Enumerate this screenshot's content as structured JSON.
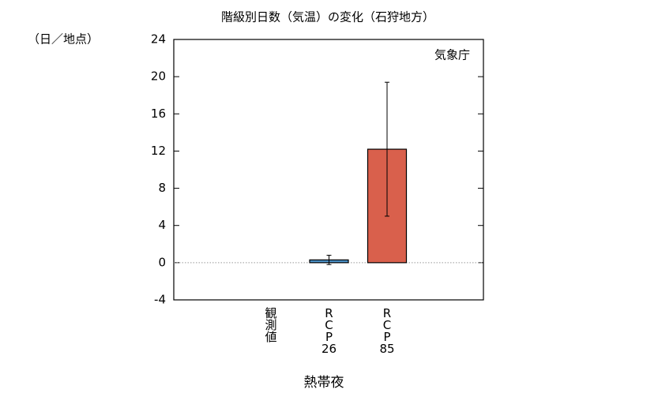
{
  "chart_data": {
    "type": "bar",
    "title": "階級別日数（気温）の変化（石狩地方）",
    "ylabel": "（日／地点）",
    "annotation": "気象庁",
    "xlabel": "熱帯夜",
    "categories": [
      "観測値",
      "RCP26",
      "RCP85"
    ],
    "values": [
      0,
      0.3,
      12.2
    ],
    "errors": [
      null,
      0.5,
      7.2
    ],
    "colors": [
      "#000000",
      "#4a8fc4",
      "#d9604c"
    ],
    "ylim": [
      -4,
      24
    ],
    "yticks": [
      -4,
      0,
      4,
      8,
      12,
      16,
      20,
      24
    ],
    "grid": false
  }
}
